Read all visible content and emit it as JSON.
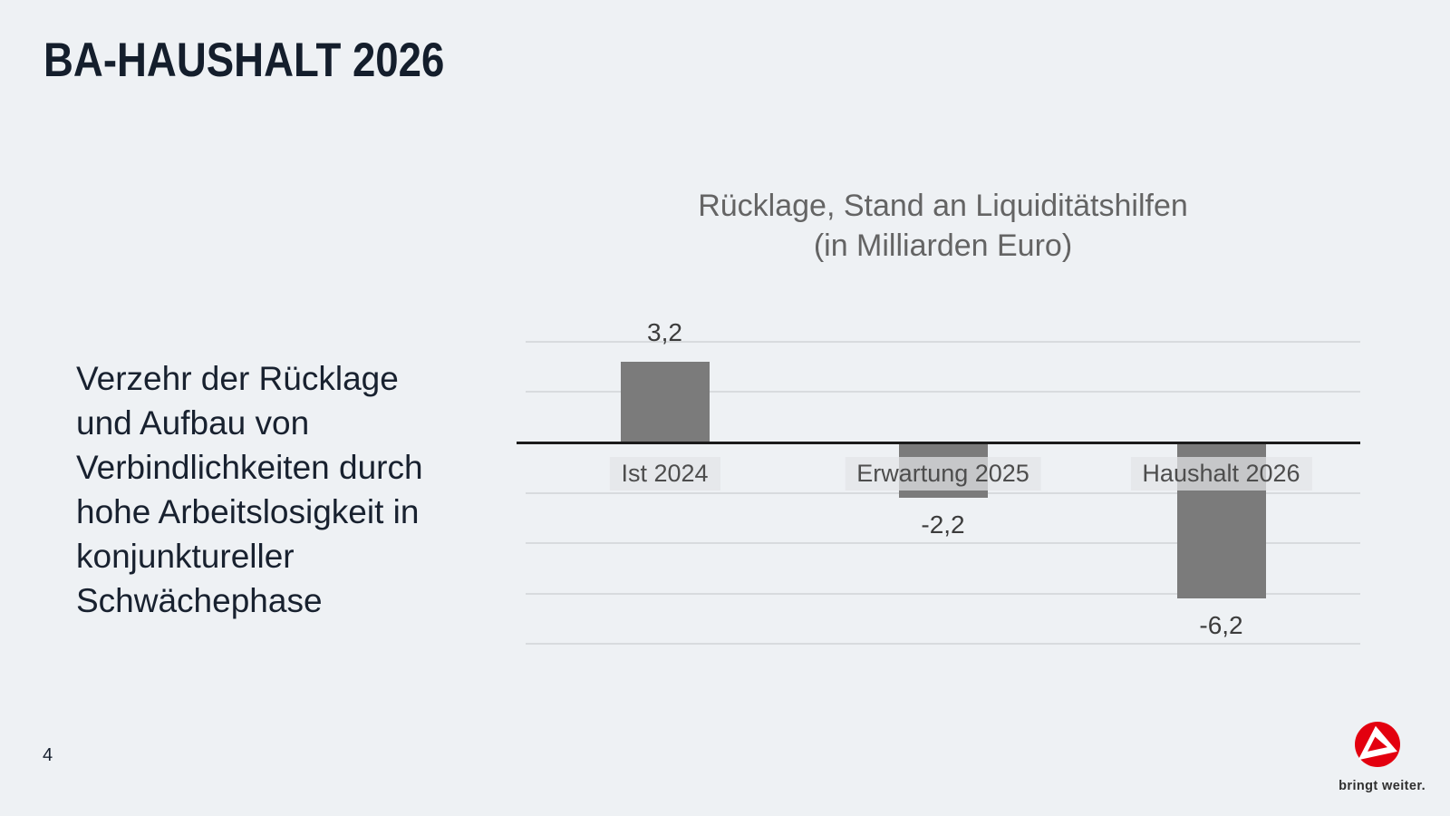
{
  "slide": {
    "title": "BA-HAUSHALT 2026",
    "page_number": "4",
    "body_lines": [
      "Verzehr der Rücklage",
      "und Aufbau von",
      "Verbindlichkeiten durch",
      "hohe Arbeitslosigkeit in",
      "konjunktureller",
      "Schwächephase"
    ],
    "footer_tagline": "bringt weiter."
  },
  "chart_data": {
    "type": "bar",
    "title": "Rücklage, Stand an Liquiditätshilfen",
    "subtitle": "(in Milliarden Euro)",
    "ylabel": "Milliarden Euro",
    "categories": [
      "Ist 2024",
      "Erwartung 2025",
      "Haushalt 2026"
    ],
    "values": [
      3.2,
      -2.2,
      -6.2
    ],
    "value_labels": [
      "3,2",
      "-2,2",
      "-6,2"
    ],
    "ylim": [
      -8,
      4
    ],
    "gridline_step": 2,
    "grid": true,
    "legend": false,
    "bar_color": "#7b7b7b",
    "axis_color": "#1b1b1b",
    "gridline_color": "#d8dbde",
    "value_label_color": "#3c3c3c",
    "category_label_color": "#4d4d4d",
    "category_chip_bg": "rgba(227,229,231,0.72)"
  },
  "colors": {
    "background": "#eef1f4",
    "heading": "#141e2c",
    "body_text": "#18212f",
    "chart_title": "#646464",
    "logo_red": "#e3000f",
    "logo_inner": "#ffffff",
    "tagline": "#2f2f2f"
  }
}
